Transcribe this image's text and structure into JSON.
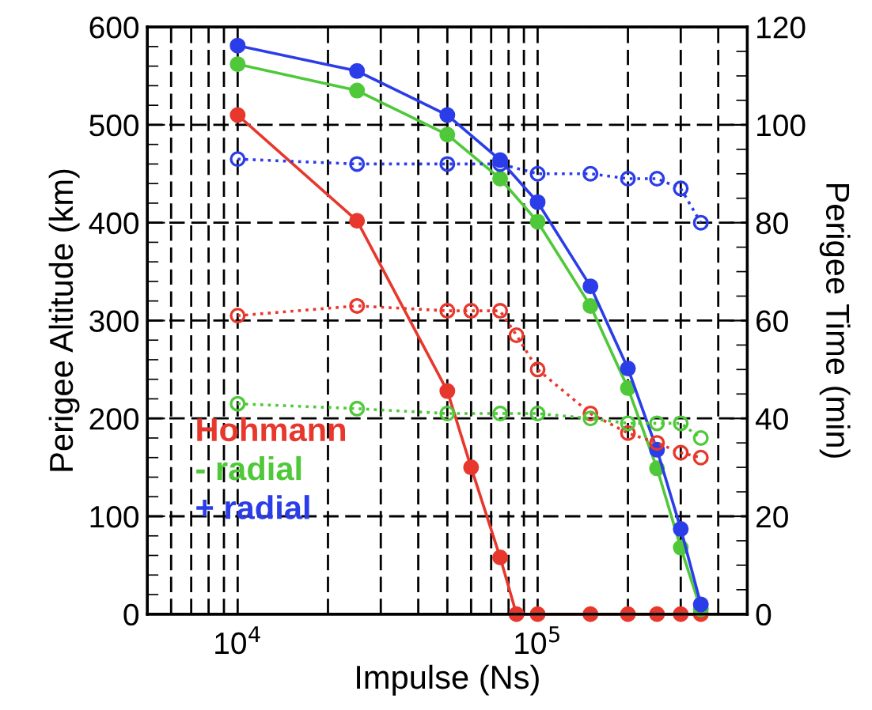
{
  "chart_data": {
    "type": "line",
    "xlabel": "Impulse (Ns)",
    "ylabel": "Perigee Altitude (km)",
    "y2label": "Perigee Time (min)",
    "log": "x",
    "grid": true,
    "legend": "bottom left",
    "xlim": [
      5000,
      500000
    ],
    "xticks": [
      {
        "value": 6000,
        "label": null
      },
      {
        "value": 7000,
        "label": null
      },
      {
        "value": 8000,
        "label": null
      },
      {
        "value": 9000,
        "label": null
      },
      {
        "value": 10000,
        "label": "10$^{4}$"
      },
      {
        "value": 20000,
        "label": null
      },
      {
        "value": 30000,
        "label": null
      },
      {
        "value": 40000,
        "label": null
      },
      {
        "value": 50000,
        "label": null
      },
      {
        "value": 60000,
        "label": null
      },
      {
        "value": 70000,
        "label": null
      },
      {
        "value": 80000,
        "label": null
      },
      {
        "value": 90000,
        "label": null
      },
      {
        "value": 100000,
        "label": "10$^{5}$"
      },
      {
        "value": 200000,
        "label": null
      },
      {
        "value": 300000,
        "label": null
      },
      {
        "value": 400000,
        "label": null
      }
    ],
    "ylim": [
      0,
      600
    ],
    "yticks": [
      0,
      {
        "value": 20,
        "label": null
      },
      {
        "value": 40,
        "label": null
      },
      {
        "value": 60,
        "label": null
      },
      {
        "value": 80,
        "label": null
      },
      100,
      {
        "value": 120,
        "label": null
      },
      {
        "value": 140,
        "label": null
      },
      {
        "value": 160,
        "label": null
      },
      {
        "value": 180,
        "label": null
      },
      200,
      {
        "value": 220,
        "label": null
      },
      {
        "value": 240,
        "label": null
      },
      {
        "value": 260,
        "label": null
      },
      {
        "value": 280,
        "label": null
      },
      300,
      {
        "value": 320,
        "label": null
      },
      {
        "value": 340,
        "label": null
      },
      {
        "value": 360,
        "label": null
      },
      {
        "value": 380,
        "label": null
      },
      400,
      {
        "value": 420,
        "label": null
      },
      {
        "value": 440,
        "label": null
      },
      {
        "value": 460,
        "label": null
      },
      {
        "value": 480,
        "label": null
      },
      500,
      {
        "value": 520,
        "label": null
      },
      {
        "value": 540,
        "label": null
      },
      {
        "value": 560,
        "label": null
      },
      {
        "value": 580,
        "label": null
      },
      600
    ],
    "y2lim": [
      0,
      120
    ],
    "y2ticks": [
      0,
      {
        "value": 5,
        "label": null
      },
      {
        "value": 10,
        "label": null
      },
      {
        "value": 15,
        "label": null
      },
      20,
      {
        "value": 25,
        "label": null
      },
      {
        "value": 30,
        "label": null
      },
      {
        "value": 35,
        "label": null
      },
      40,
      {
        "value": 45,
        "label": null
      },
      {
        "value": 50,
        "label": null
      },
      {
        "value": 55,
        "label": null
      },
      60,
      {
        "value": 65,
        "label": null
      },
      {
        "value": 70,
        "label": null
      },
      {
        "value": 75,
        "label": null
      },
      80,
      {
        "value": 85,
        "label": null
      },
      {
        "value": 90,
        "label": null
      },
      {
        "value": 95,
        "label": null
      },
      100,
      {
        "value": 105,
        "label": null
      },
      {
        "value": 110,
        "label": null
      },
      {
        "value": 115,
        "label": null
      },
      120
    ],
    "series": [
      {
        "name": "Hohmann",
        "color": "#e8372c",
        "marker": "circle",
        "line_style": "solid",
        "x": [
          10000,
          25000,
          50000,
          60000,
          75000,
          85000,
          100000,
          150000,
          200000,
          250000,
          300000,
          350000
        ],
        "values": [
          510,
          402,
          228,
          150,
          58,
          0,
          0,
          0,
          0,
          0,
          0,
          0
        ]
      },
      {
        "name": "- radial",
        "color": "#4fc83a",
        "marker": "circle",
        "line_style": "solid",
        "x": [
          10000,
          25000,
          50000,
          75000,
          100000,
          150000,
          200000,
          250000,
          300000,
          350000
        ],
        "values": [
          562,
          535,
          490,
          445,
          401,
          315,
          231,
          149,
          68,
          5
        ]
      },
      {
        "name": "+ radial",
        "color": "#2b3de8",
        "marker": "circle",
        "line_style": "solid",
        "x": [
          10000,
          25000,
          50000,
          75000,
          100000,
          150000,
          200000,
          250000,
          300000,
          350000
        ],
        "values": [
          581,
          555,
          510,
          464,
          421,
          335,
          251,
          168,
          87,
          10
        ]
      },
      {
        "color": "#e8372c",
        "marker": "circle",
        "line_style": "dotted",
        "axis": "y2",
        "x": [
          10000,
          25000,
          50000,
          60000,
          75000,
          85000,
          100000,
          150000,
          200000,
          250000,
          300000,
          350000
        ],
        "values": [
          61,
          63,
          62,
          62,
          62,
          57,
          50,
          41,
          37,
          35,
          33,
          32
        ]
      },
      {
        "color": "#4fc83a",
        "marker": "circle",
        "line_style": "dotted",
        "axis": "y2",
        "x": [
          10000,
          25000,
          50000,
          75000,
          100000,
          150000,
          200000,
          250000,
          300000,
          350000
        ],
        "values": [
          43,
          42,
          41,
          41,
          41,
          40,
          39,
          39,
          39,
          36
        ]
      },
      {
        "color": "#2b3de8",
        "marker": "circle",
        "line_style": "dotted",
        "axis": "y2",
        "x": [
          10000,
          25000,
          50000,
          75000,
          100000,
          150000,
          200000,
          250000,
          300000,
          350000
        ],
        "values": [
          93,
          92,
          92,
          92,
          90,
          90,
          89,
          89,
          87,
          80
        ]
      }
    ]
  }
}
